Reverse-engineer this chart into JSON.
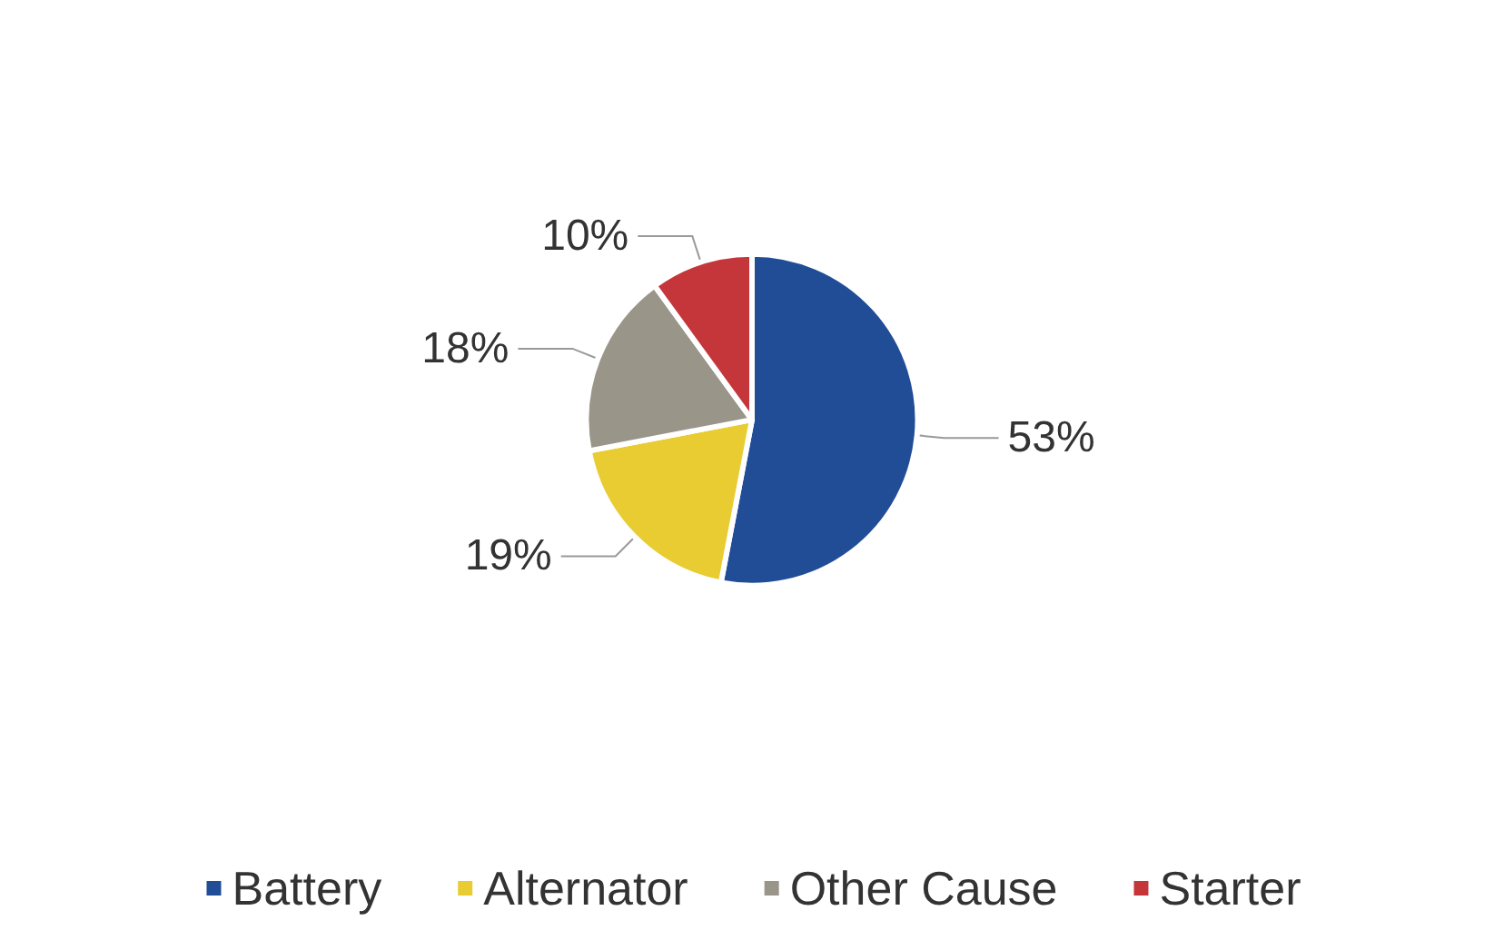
{
  "chart_data": {
    "type": "pie",
    "categories": [
      "Battery",
      "Alternator",
      "Other Cause",
      "Starter"
    ],
    "values": [
      53,
      19,
      18,
      10
    ],
    "value_labels": [
      "53%",
      "19%",
      "18%",
      "10%"
    ],
    "colors": [
      "#214d97",
      "#e8cc32",
      "#999589",
      "#c4363a"
    ],
    "legend": "bottom"
  }
}
